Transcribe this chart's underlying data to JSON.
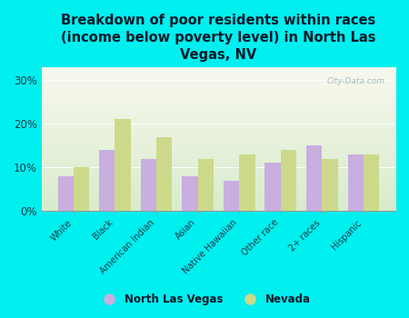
{
  "categories": [
    "White",
    "Black",
    "American Indian",
    "Asian",
    "Native Hawaiian",
    "Other race",
    "2+ races",
    "Hispanic"
  ],
  "nlv_values": [
    8,
    14,
    12,
    8,
    7,
    11,
    15,
    13
  ],
  "nv_values": [
    10,
    21,
    17,
    12,
    13,
    14,
    12,
    13
  ],
  "nlv_color": "#c9aee0",
  "nv_color": "#cdd98a",
  "background_color": "#00efef",
  "plot_bg_top": "#f8f8ee",
  "plot_bg_bottom": "#d8eccc",
  "title": "Breakdown of poor residents within races\n(income below poverty level) in North Las\nVegas, NV",
  "title_fontsize": 10.5,
  "title_color": "#0a1a2a",
  "ylabel_ticks": [
    "0%",
    "10%",
    "20%",
    "30%"
  ],
  "yticks": [
    0,
    10,
    20,
    30
  ],
  "ylim": [
    0,
    33
  ],
  "legend_labels": [
    "North Las Vegas",
    "Nevada"
  ],
  "watermark": "City-Data.com",
  "bar_width": 0.38,
  "tick_color": "#1a3a4a",
  "label_fontsize": 7.0
}
